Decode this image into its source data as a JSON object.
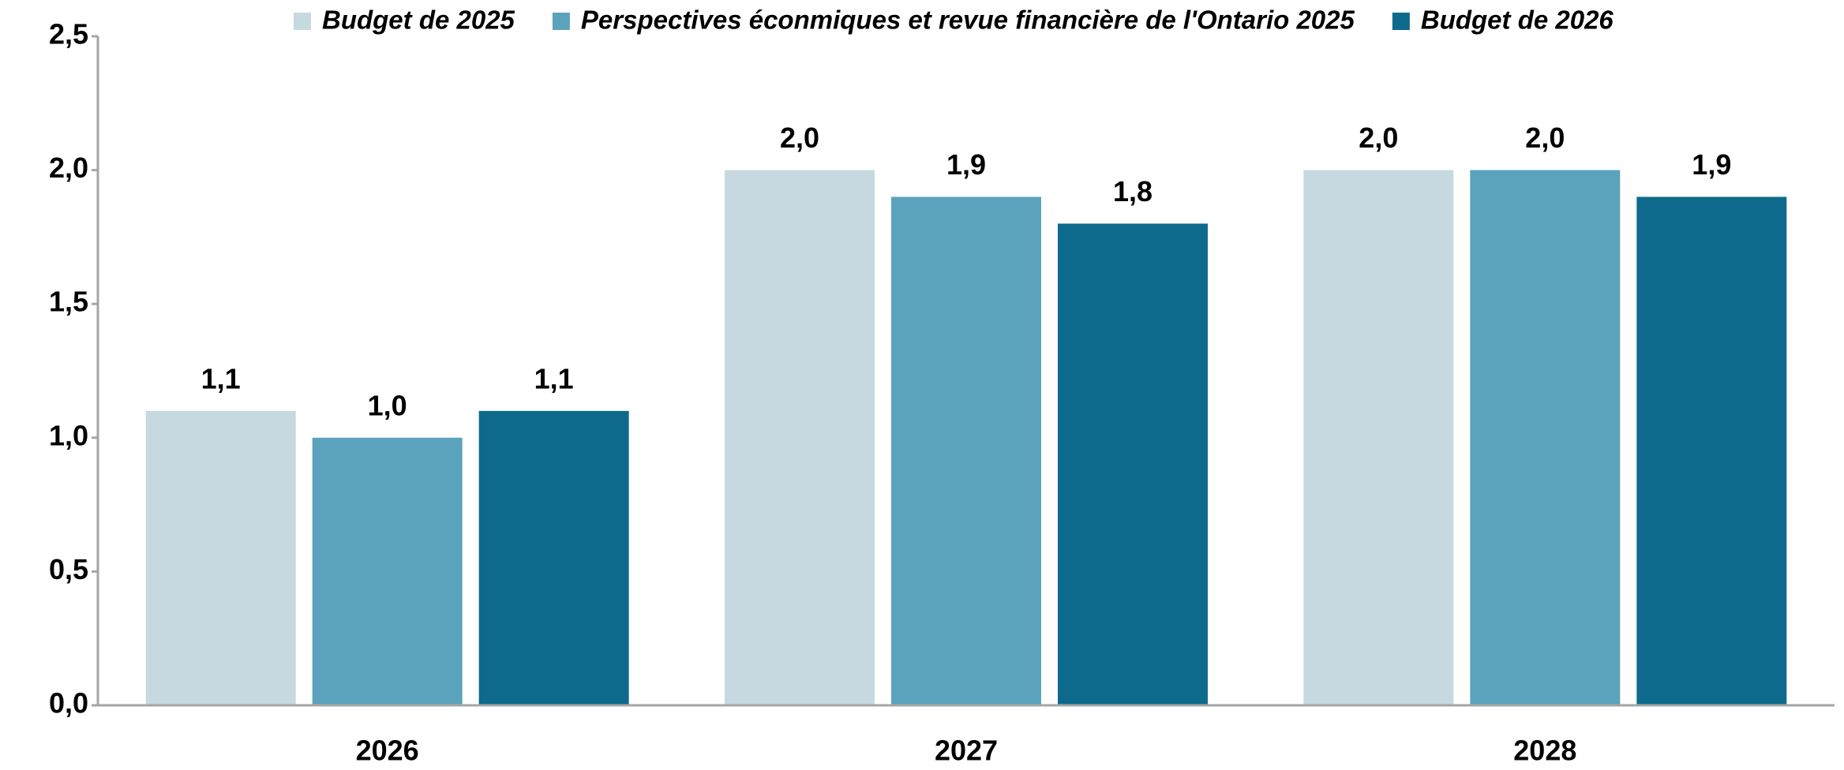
{
  "chart_data": {
    "type": "bar",
    "categories": [
      "2026",
      "2027",
      "2028"
    ],
    "series": [
      {
        "name": "Budget de 2025",
        "color": "#c6d9e0",
        "values": [
          1.1,
          2.0,
          2.0
        ],
        "value_labels": [
          "1,1",
          "2,0",
          "2,0"
        ]
      },
      {
        "name": "Perspectives éconmiques et revue financière de l'Ontario 2025",
        "color": "#5ba3bd",
        "values": [
          1.0,
          1.9,
          2.0
        ],
        "value_labels": [
          "1,0",
          "1,9",
          "2,0"
        ]
      },
      {
        "name": "Budget de 2026",
        "color": "#0e6a8c",
        "values": [
          1.1,
          1.8,
          1.9
        ],
        "value_labels": [
          "1,1",
          "1,8",
          "1,9"
        ]
      }
    ],
    "ylim": [
      0,
      2.5
    ],
    "yticks": [
      {
        "value": 0,
        "label": "0,0"
      },
      {
        "value": 0.5,
        "label": "0,5"
      },
      {
        "value": 1,
        "label": "1,0"
      },
      {
        "value": 1.5,
        "label": "1,5"
      },
      {
        "value": 2,
        "label": "2,0"
      },
      {
        "value": 2.5,
        "label": "2,5"
      }
    ],
    "grid": false,
    "legend": "top"
  }
}
